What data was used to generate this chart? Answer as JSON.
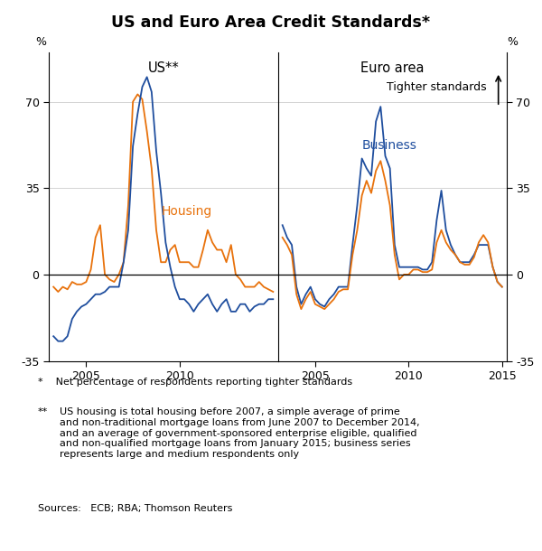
{
  "title": "US and Euro Area Credit Standards*",
  "panel_left_title": "US**",
  "panel_right_title": "Euro area",
  "annotation_tighter": "Tighter standards",
  "label_housing": "Housing",
  "label_business": "Business",
  "color_housing": "#E8720C",
  "color_business": "#1F4E9E",
  "ylim": [
    -35,
    90
  ],
  "yticks": [
    -35,
    0,
    35,
    70
  ],
  "yticklabels": [
    "-35",
    "0",
    "35",
    "70"
  ],
  "footnote1": "*    Net percentage of respondents reporting tighter standards",
  "footnote2_star": "**",
  "footnote2_text": "US housing is total housing before 2007, a simple average of prime\n     and non-traditional mortgage loans from June 2007 to December 2014,\n     and an average of government-sponsored enterprise eligible, qualified\n     and non-qualified mortgage loans from January 2015; business series\n     represents large and medium respondents only",
  "sources": "Sources:   ECB; RBA; Thomson Reuters",
  "us_dates": [
    2003.25,
    2003.5,
    2003.75,
    2004.0,
    2004.25,
    2004.5,
    2004.75,
    2005.0,
    2005.25,
    2005.5,
    2005.75,
    2006.0,
    2006.25,
    2006.5,
    2006.75,
    2007.0,
    2007.25,
    2007.5,
    2007.75,
    2008.0,
    2008.25,
    2008.5,
    2008.75,
    2009.0,
    2009.25,
    2009.5,
    2009.75,
    2010.0,
    2010.25,
    2010.5,
    2010.75,
    2011.0,
    2011.25,
    2011.5,
    2011.75,
    2012.0,
    2012.25,
    2012.5,
    2012.75,
    2013.0,
    2013.25,
    2013.5,
    2013.75,
    2014.0,
    2014.25,
    2014.5,
    2014.75,
    2015.0
  ],
  "us_housing": [
    -5,
    -7,
    -5,
    -6,
    -3,
    -4,
    -4,
    -3,
    2,
    15,
    20,
    0,
    -2,
    -3,
    0,
    5,
    28,
    70,
    73,
    71,
    58,
    43,
    18,
    5,
    5,
    10,
    12,
    5,
    5,
    5,
    3,
    3,
    10,
    18,
    13,
    10,
    10,
    5,
    12,
    0,
    -2,
    -5,
    -5,
    -5,
    -3,
    -5,
    -6,
    -7
  ],
  "us_business": [
    -25,
    -27,
    -27,
    -25,
    -18,
    -15,
    -13,
    -12,
    -10,
    -8,
    -8,
    -7,
    -5,
    -5,
    -5,
    5,
    18,
    52,
    65,
    76,
    80,
    74,
    50,
    33,
    13,
    3,
    -5,
    -10,
    -10,
    -12,
    -15,
    -12,
    -10,
    -8,
    -12,
    -15,
    -12,
    -10,
    -15,
    -15,
    -12,
    -12,
    -15,
    -13,
    -12,
    -12,
    -10,
    -10
  ],
  "ea_dates": [
    2003.25,
    2003.5,
    2003.75,
    2004.0,
    2004.25,
    2004.5,
    2004.75,
    2005.0,
    2005.25,
    2005.5,
    2005.75,
    2006.0,
    2006.25,
    2006.5,
    2006.75,
    2007.0,
    2007.25,
    2007.5,
    2007.75,
    2008.0,
    2008.25,
    2008.5,
    2008.75,
    2009.0,
    2009.25,
    2009.5,
    2009.75,
    2010.0,
    2010.25,
    2010.5,
    2010.75,
    2011.0,
    2011.25,
    2011.5,
    2011.75,
    2012.0,
    2012.25,
    2012.5,
    2012.75,
    2013.0,
    2013.25,
    2013.5,
    2013.75,
    2014.0,
    2014.25,
    2014.5,
    2014.75,
    2015.0
  ],
  "ea_business": [
    20,
    15,
    12,
    -5,
    -12,
    -8,
    -5,
    -10,
    -12,
    -13,
    -10,
    -8,
    -5,
    -5,
    -5,
    12,
    28,
    47,
    43,
    40,
    62,
    68,
    48,
    43,
    12,
    3,
    3,
    3,
    3,
    3,
    2,
    2,
    5,
    22,
    34,
    18,
    12,
    8,
    5,
    5,
    5,
    8,
    12,
    12,
    12,
    3,
    -3,
    -5
  ],
  "ea_housing": [
    15,
    12,
    8,
    -8,
    -14,
    -10,
    -7,
    -12,
    -13,
    -14,
    -12,
    -10,
    -7,
    -6,
    -6,
    8,
    18,
    32,
    38,
    33,
    42,
    46,
    38,
    28,
    8,
    -2,
    0,
    0,
    2,
    2,
    1,
    1,
    2,
    13,
    18,
    13,
    10,
    8,
    5,
    4,
    4,
    7,
    13,
    16,
    13,
    3,
    -3,
    -5
  ]
}
